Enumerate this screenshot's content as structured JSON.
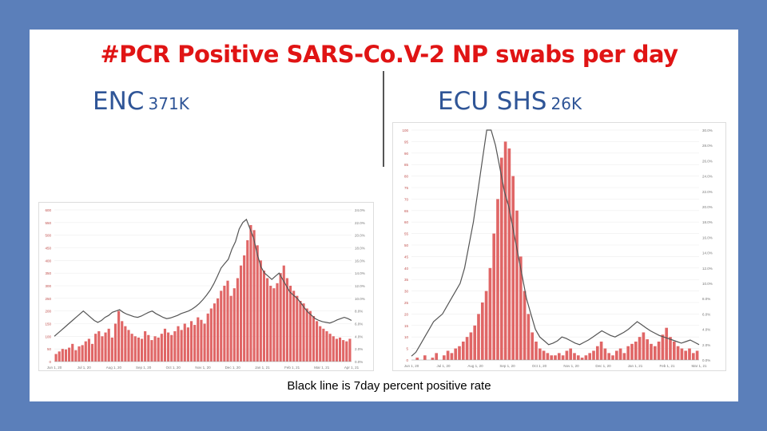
{
  "slide": {
    "title": "#PCR Positive SARS-Co.V-2 NP swabs per day",
    "caption": "Black line is 7day percent positive rate",
    "left_label": {
      "name": "ENC",
      "count": "371K"
    },
    "right_label": {
      "name": "ECU SHS",
      "count": "26K"
    }
  },
  "colors": {
    "title": "#e01414",
    "heading": "#2f5597",
    "bars": "#e06666",
    "rate_line": "#555555",
    "background": "#5b7fba"
  },
  "chart_data": [
    {
      "type": "bar",
      "panel": "ENC",
      "x_ticks": [
        "Jun 1, 20",
        "Jul 1, 20",
        "Aug 1, 20",
        "Sep 1, 20",
        "Oct 1, 20",
        "Nov 1, 20",
        "Dec 1, 20",
        "Jan 1, 21",
        "Feb 1, 21",
        "Mar 1, 21",
        "Apr 1, 21"
      ],
      "y_ticks": [
        "0",
        "50",
        "100",
        "150",
        "200",
        "250",
        "300",
        "350",
        "400",
        "450",
        "500",
        "550",
        "600"
      ],
      "ylim": [
        0,
        600
      ],
      "y2_ticks": [
        "0.0%",
        "2.0%",
        "4.0%",
        "6.0%",
        "8.0%",
        "10.0%",
        "12.0%",
        "14.0%",
        "16.0%",
        "18.0%",
        "20.0%",
        "22.0%",
        "24.0%"
      ],
      "y2lim": [
        0,
        24
      ],
      "series": [
        {
          "kind": "bar",
          "values": [
            30,
            40,
            50,
            48,
            55,
            70,
            45,
            60,
            65,
            80,
            90,
            70,
            110,
            120,
            100,
            115,
            130,
            95,
            150,
            200,
            160,
            140,
            125,
            110,
            100,
            95,
            90,
            120,
            105,
            85,
            100,
            95,
            110,
            130,
            115,
            105,
            120,
            140,
            125,
            150,
            135,
            160,
            145,
            175,
            165,
            150,
            190,
            210,
            230,
            250,
            280,
            300,
            320,
            260,
            290,
            330,
            380,
            420,
            480,
            540,
            520,
            460,
            400,
            360,
            330,
            300,
            290,
            310,
            350,
            380,
            330,
            300,
            280,
            260,
            240,
            230,
            210,
            200,
            180,
            160,
            140,
            130,
            120,
            110,
            100,
            90,
            95,
            85,
            80,
            90
          ]
        },
        {
          "kind": "line",
          "values": [
            4,
            4.5,
            5,
            5.5,
            6,
            6.5,
            7,
            7.5,
            8,
            7.5,
            7,
            6.5,
            6.2,
            6.5,
            7,
            7.3,
            7.8,
            8,
            8.2,
            7.8,
            7.5,
            7.3,
            7.1,
            7,
            7.2,
            7.5,
            7.8,
            8,
            7.6,
            7.3,
            7,
            6.8,
            6.9,
            7.1,
            7.3,
            7.6,
            7.8,
            8,
            8.3,
            8.7,
            9.2,
            9.8,
            10.5,
            11.3,
            12.3,
            13.5,
            14.8,
            15.5,
            16.2,
            17.8,
            19,
            21,
            22,
            22.5,
            21,
            19.5,
            17,
            15,
            14,
            13.5,
            13,
            13.5,
            14,
            13,
            12,
            11,
            10.5,
            10,
            9.3,
            8.5,
            7.8,
            7.3,
            6.8,
            6.5,
            6.3,
            6.2,
            6.1,
            6.3,
            6.6,
            6.8,
            7,
            6.8,
            6.5
          ]
        }
      ]
    },
    {
      "type": "bar",
      "panel": "ECU SHS",
      "x_ticks": [
        "Jun 1, 20",
        "Jul 1, 20",
        "Aug 1, 20",
        "Sep 1, 20",
        "Oct 1, 20",
        "Nov 1, 20",
        "Dec 1, 20",
        "Jan 1, 21",
        "Feb 1, 21",
        "Mar 1, 21"
      ],
      "y_ticks": [
        "0",
        "5",
        "10",
        "15",
        "20",
        "25",
        "30",
        "35",
        "40",
        "45",
        "50",
        "55",
        "60",
        "65",
        "70",
        "75",
        "80",
        "85",
        "90",
        "95",
        "100"
      ],
      "ylim": [
        0,
        100
      ],
      "y2_ticks": [
        "0.0%",
        "2.0%",
        "4.0%",
        "6.0%",
        "8.0%",
        "10.0%",
        "12.0%",
        "14.0%",
        "16.0%",
        "18.0%",
        "20.0%",
        "22.0%",
        "24.0%",
        "26.0%",
        "28.0%",
        "30.0%"
      ],
      "y2lim": [
        0,
        30
      ],
      "series": [
        {
          "kind": "bar",
          "values": [
            0,
            1,
            0,
            2,
            0,
            1,
            3,
            0,
            2,
            4,
            3,
            5,
            6,
            8,
            10,
            12,
            15,
            20,
            25,
            30,
            40,
            55,
            70,
            88,
            95,
            92,
            80,
            65,
            45,
            30,
            20,
            12,
            8,
            5,
            4,
            3,
            2,
            2,
            3,
            2,
            4,
            5,
            3,
            2,
            1,
            2,
            3,
            4,
            6,
            8,
            5,
            3,
            2,
            4,
            5,
            3,
            6,
            7,
            8,
            10,
            12,
            9,
            7,
            6,
            8,
            11,
            14,
            10,
            8,
            6,
            5,
            4,
            5,
            3,
            4
          ]
        },
        {
          "kind": "line",
          "values": [
            0.5,
            1,
            2,
            3,
            4,
            5,
            5.5,
            6,
            7,
            8,
            9,
            10,
            12,
            15,
            18,
            22,
            26,
            30,
            30,
            28,
            25,
            22,
            20,
            17,
            14,
            11,
            8,
            6,
            4,
            3,
            2.5,
            2,
            2.2,
            2.5,
            3,
            2.8,
            2.5,
            2.2,
            2,
            2.3,
            2.6,
            3,
            3.4,
            3.8,
            3.5,
            3.2,
            3,
            3.3,
            3.6,
            4,
            4.5,
            5,
            4.6,
            4.2,
            3.8,
            3.5,
            3.2,
            3,
            2.8,
            2.6,
            2.4,
            2.2,
            2.4,
            2.6,
            2.3,
            2
          ]
        }
      ]
    }
  ]
}
